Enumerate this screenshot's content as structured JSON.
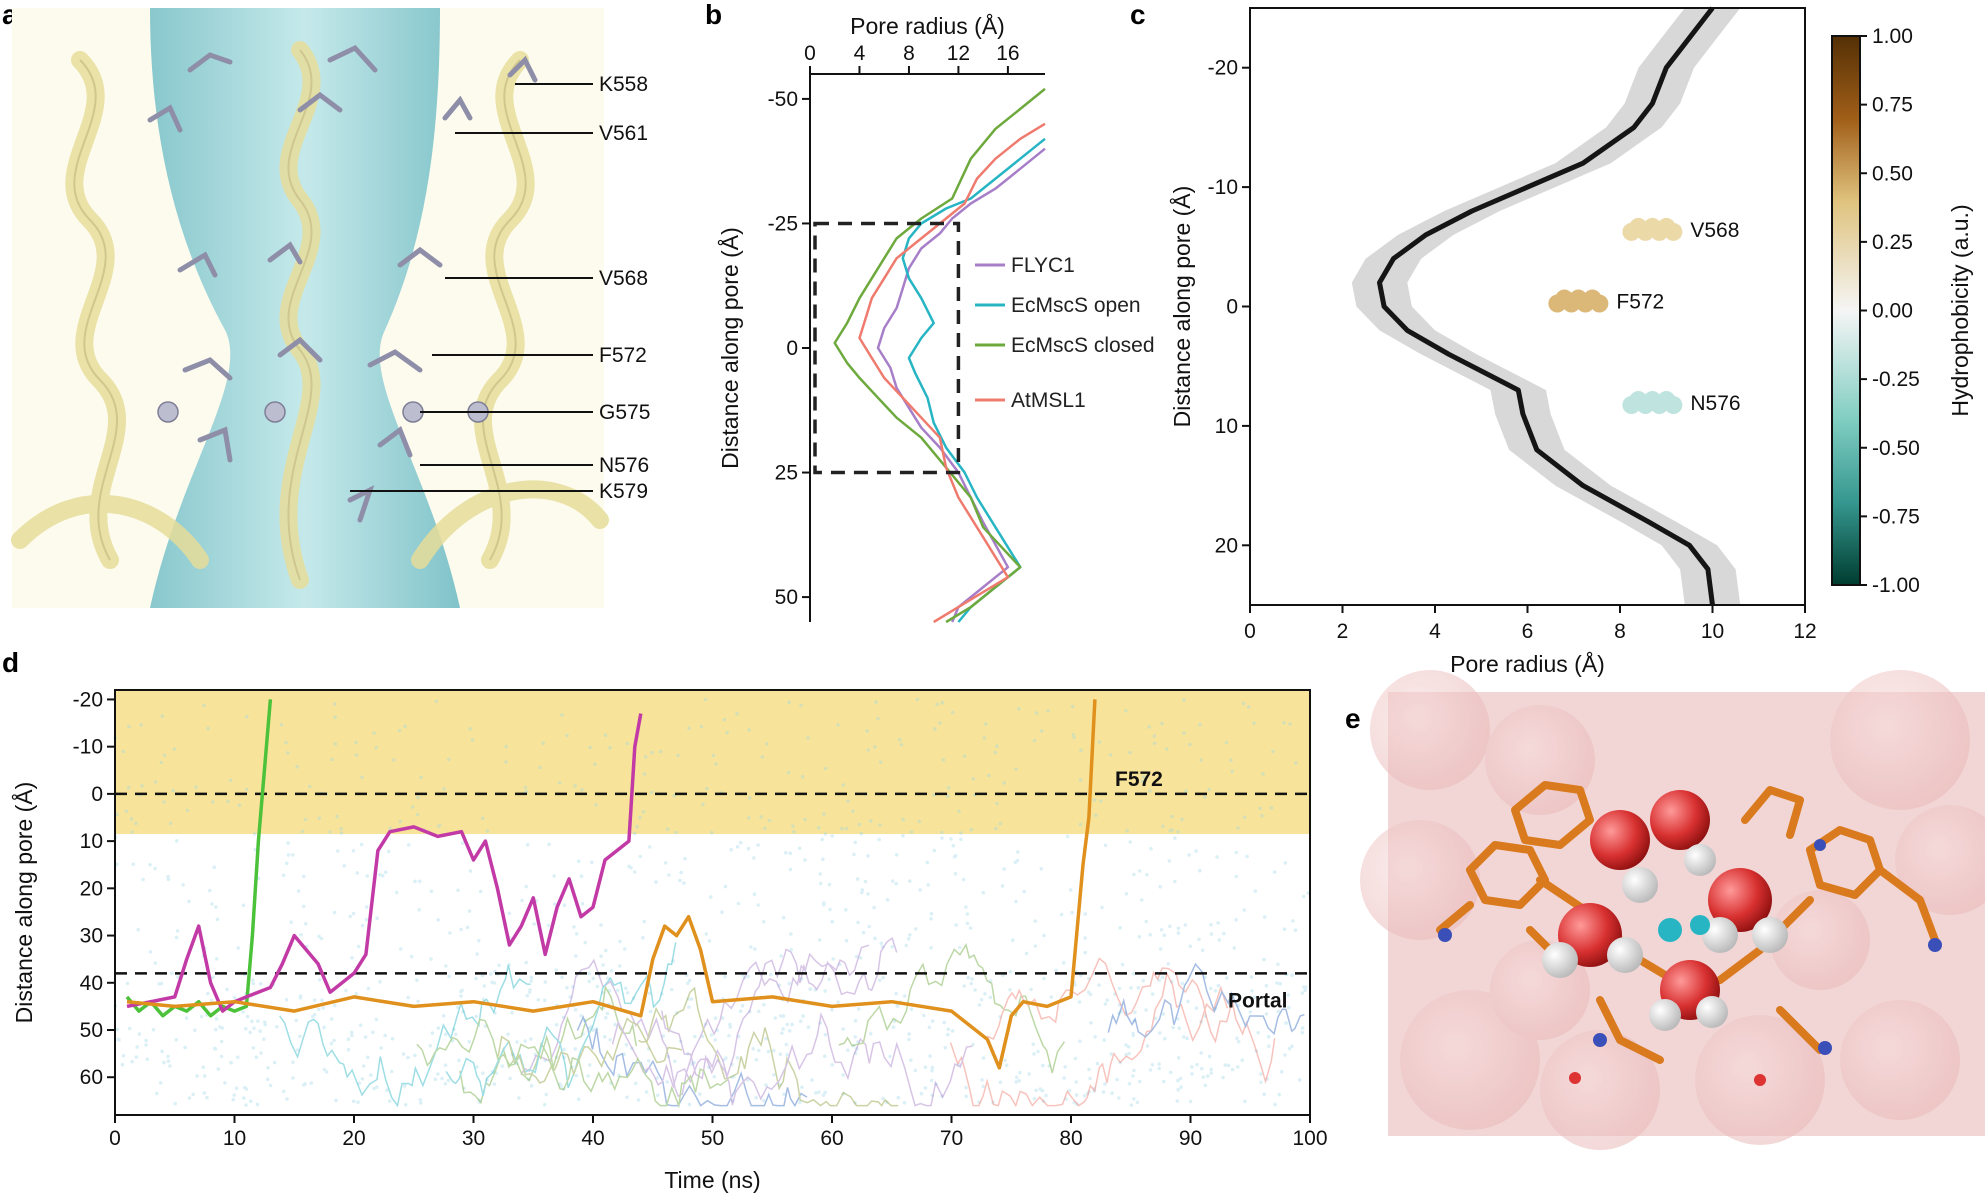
{
  "panels": {
    "a": {
      "label": "a",
      "residues": [
        "K558",
        "V561",
        "V568",
        "F572",
        "G575",
        "N576",
        "K579"
      ]
    },
    "b": {
      "label": "b"
    },
    "c": {
      "label": "c"
    },
    "d": {
      "label": "d",
      "annotations": [
        "F572",
        "Portal"
      ]
    },
    "e": {
      "label": "e"
    }
  },
  "colors": {
    "FLYC1": "#a77fc9",
    "EcMscS_open": "#27b5c4",
    "EcMscS_closed": "#6ea93d",
    "AtMSL1": "#ef7b6f",
    "traj_green": "#4cc23a",
    "traj_magenta": "#c23aa6",
    "traj_orange": "#e0901c",
    "highlight_yellow": "#f7e49a",
    "water_dots": "#9ad6e6"
  },
  "chart_data": [
    {
      "panel": "b",
      "type": "line",
      "xlabel": "Pore radius (Å)",
      "ylabel": "Distance along pore (Å)",
      "xlim": [
        0,
        19
      ],
      "ylim": [
        55,
        -55
      ],
      "xticks": [
        "0",
        "4",
        "8",
        "12",
        "16"
      ],
      "xtick_values": [
        0,
        4,
        8,
        12,
        16
      ],
      "yticks": [
        "-50",
        "-25",
        "0",
        "25",
        "50"
      ],
      "ytick_values": [
        -50,
        -25,
        0,
        25,
        50
      ],
      "legend_position": "inside-right",
      "series": [
        {
          "name": "FLYC1",
          "x": [
            19,
            17,
            15,
            13,
            11.5,
            10.5,
            9,
            8,
            7.5,
            7,
            6,
            5.5,
            6.5,
            7,
            8,
            9,
            10.5,
            12,
            13,
            14,
            16,
            14,
            12,
            11.5
          ],
          "y": [
            -40,
            -36,
            -32,
            -29,
            -26,
            -23,
            -20,
            -16,
            -12,
            -8,
            -4,
            0,
            4,
            8,
            12,
            16,
            20,
            25,
            30,
            35,
            44,
            48,
            52,
            55
          ]
        },
        {
          "name": "EcMscS open",
          "x": [
            19,
            17,
            15,
            13,
            11,
            9,
            8,
            7.5,
            8,
            9,
            10,
            9,
            8,
            8.5,
            9.5,
            10,
            11,
            12.5,
            13.5,
            15,
            17,
            15,
            13,
            12
          ],
          "y": [
            -42,
            -38,
            -34,
            -30,
            -28,
            -25,
            -22,
            -18,
            -14,
            -10,
            -5,
            -2,
            2,
            5,
            10,
            15,
            20,
            25,
            30,
            36,
            44,
            48,
            52,
            55
          ]
        },
        {
          "name": "EcMscS closed",
          "x": [
            19,
            17,
            15,
            13,
            11.5,
            9,
            7,
            6,
            5,
            4,
            3,
            2,
            3,
            4,
            5.5,
            7,
            9,
            11,
            13,
            14,
            17,
            15,
            13,
            11
          ],
          "y": [
            -52,
            -48,
            -44,
            -38,
            -30,
            -26,
            -22,
            -18,
            -14,
            -10,
            -5,
            -1,
            3,
            6,
            10,
            14,
            18,
            24,
            30,
            36,
            44,
            48,
            52,
            55
          ]
        },
        {
          "name": "AtMSL1",
          "x": [
            19,
            17,
            15,
            13.5,
            12.5,
            11,
            9,
            7,
            6,
            5,
            4.5,
            4,
            5,
            6,
            7.5,
            9,
            10.5,
            11,
            12,
            14,
            16,
            14,
            12,
            10
          ],
          "y": [
            -45,
            -42,
            -38,
            -34,
            -29,
            -26,
            -22,
            -18,
            -14,
            -10,
            -6,
            -2,
            2,
            6,
            10,
            14,
            18,
            24,
            30,
            38,
            46,
            49,
            52,
            55
          ]
        }
      ],
      "box": {
        "x": [
          0,
          12
        ],
        "y": [
          -25,
          25
        ]
      }
    },
    {
      "panel": "c",
      "type": "line",
      "xlabel": "Pore radius (Å)",
      "ylabel": "Distance along pore (Å)",
      "colorbar_label": "Hydrophobicity (a.u.)",
      "colorbar_range": [
        -1,
        1
      ],
      "colorbar_ticks": [
        "1.00",
        "0.75",
        "0.50",
        "0.25",
        "0.00",
        "-0.25",
        "-0.50",
        "-0.75",
        "-1.00"
      ],
      "colorbar_tick_values": [
        1,
        0.75,
        0.5,
        0.25,
        0,
        -0.25,
        -0.5,
        -0.75,
        -1
      ],
      "xlim": [
        0,
        12
      ],
      "ylim": [
        25,
        -25
      ],
      "xticks": [
        "0",
        "2",
        "4",
        "6",
        "8",
        "10",
        "12"
      ],
      "xtick_values": [
        0,
        2,
        4,
        6,
        8,
        10,
        12
      ],
      "yticks": [
        "-20",
        "-10",
        "0",
        "10",
        "20"
      ],
      "ytick_values": [
        -20,
        -10,
        0,
        10,
        20
      ],
      "profile": {
        "x": [
          10,
          9.8,
          9.4,
          9.0,
          8.7,
          8.3,
          7.2,
          6.0,
          4.8,
          3.8,
          3.1,
          2.8,
          2.9,
          3.4,
          4.3,
          5.3,
          5.8,
          5.9,
          6.2,
          7.2,
          8.6,
          9.5,
          9.9,
          10
        ],
        "y": [
          -25,
          -24,
          -22,
          -20,
          -17,
          -15,
          -12,
          -10,
          -8,
          -6,
          -4,
          -2,
          0,
          2,
          4,
          6,
          7,
          9,
          12,
          15,
          18,
          20,
          22,
          25
        ]
      },
      "band_halfwidth": 0.6,
      "residue_points": [
        {
          "name": "V568",
          "x": 8.7,
          "y": -6.5,
          "hydrophobicity": 0.35
        },
        {
          "name": "F572",
          "x": 7.1,
          "y": -0.5,
          "hydrophobicity": 0.45
        },
        {
          "name": "N576",
          "x": 8.7,
          "y": 8.0,
          "hydrophobicity": -0.15
        }
      ]
    },
    {
      "panel": "d",
      "type": "line",
      "xlabel": "Time (ns)",
      "ylabel": "Distance along pore (Å)",
      "xlim": [
        0,
        100
      ],
      "ylim": [
        68,
        -22
      ],
      "xticks": [
        "0",
        "10",
        "20",
        "30",
        "40",
        "50",
        "60",
        "70",
        "80",
        "90",
        "100"
      ],
      "xtick_values": [
        0,
        10,
        20,
        30,
        40,
        50,
        60,
        70,
        80,
        90,
        100
      ],
      "yticks": [
        "-20",
        "-10",
        "0",
        "10",
        "20",
        "30",
        "40",
        "50",
        "60"
      ],
      "ytick_values": [
        -20,
        -10,
        0,
        10,
        20,
        30,
        40,
        50,
        60
      ],
      "hlines": [
        0,
        38
      ],
      "shaded_region": [
        -22,
        8.5
      ],
      "series": [
        {
          "name": "",
          "color": "traj_green",
          "x": [
            1,
            2,
            3,
            4,
            5,
            6,
            7,
            8,
            9,
            10,
            11,
            11.5,
            12,
            12.5,
            13
          ],
          "y": [
            43,
            46,
            44,
            47,
            45,
            46,
            44,
            47,
            45,
            46,
            45,
            30,
            10,
            -5,
            -20
          ]
        },
        {
          "name": "",
          "color": "traj_magenta",
          "x": [
            1,
            3,
            5,
            6,
            7,
            8,
            9,
            10,
            11,
            13,
            14,
            15,
            16,
            17,
            18,
            19,
            20,
            21,
            22,
            23,
            25,
            27,
            29,
            30,
            31,
            32,
            33,
            34,
            35,
            36,
            37,
            38,
            39,
            40,
            41,
            42,
            43,
            43.5,
            44
          ],
          "y": [
            45,
            44,
            43,
            35,
            28,
            40,
            46,
            44,
            43,
            41,
            36,
            30,
            33,
            36,
            42,
            40,
            38,
            34,
            12,
            8,
            7,
            9,
            8,
            14,
            10,
            20,
            32,
            28,
            22,
            34,
            24,
            18,
            26,
            24,
            14,
            12,
            10,
            -10,
            -17
          ]
        },
        {
          "name": "",
          "color": "traj_orange",
          "x": [
            1,
            5,
            10,
            15,
            20,
            25,
            30,
            35,
            40,
            44,
            45,
            46,
            47,
            48,
            49,
            50,
            55,
            60,
            65,
            70,
            73,
            74,
            75,
            76,
            78,
            80,
            81,
            81.5,
            82
          ],
          "y": [
            44,
            45,
            44,
            46,
            43,
            45,
            44,
            46,
            44,
            47,
            35,
            28,
            30,
            26,
            33,
            44,
            43,
            45,
            44,
            46,
            52,
            58,
            47,
            44,
            45,
            43,
            15,
            5,
            -20
          ]
        }
      ]
    }
  ]
}
